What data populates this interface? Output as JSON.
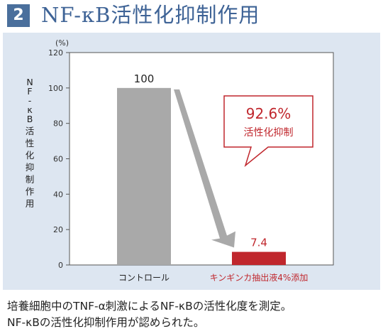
{
  "header": {
    "number": "2",
    "title": "NF-κB活性化抑制作用"
  },
  "chart_data": {
    "type": "bar",
    "categories": [
      "コントロール",
      "キンギンカ抽出液4%添加"
    ],
    "values": [
      100,
      7.4
    ],
    "value_labels": [
      "100",
      "7.4"
    ],
    "bar_colors": [
      "#a9a9a9",
      "#c0272d"
    ],
    "category_colors": [
      "#222222",
      "#c0272d"
    ],
    "title": "",
    "xlabel": "",
    "ylabel": "NF-κB活性化抑制作用",
    "unit_label": "(%)",
    "ylim": [
      0,
      120
    ],
    "yticks": [
      "0",
      "20",
      "40",
      "60",
      "80",
      "100",
      "120"
    ],
    "grid": false,
    "annotation": {
      "value_text": "92.6%",
      "text": "活性化抑制",
      "color": "#c0272d"
    }
  },
  "caption": {
    "line1": "培養細胞中のTNF-α刺激によるNF-κBの活性化度を測定。",
    "line2": "NF-κBの活性化抑制作用が認められた。"
  }
}
